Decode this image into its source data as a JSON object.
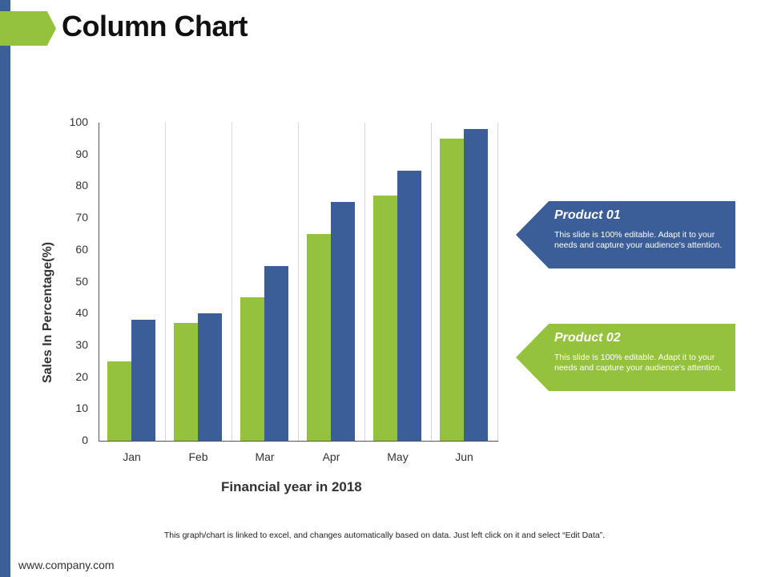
{
  "slide": {
    "title": "Column Chart",
    "footnote": "This graph/chart is linked to excel, and changes automatically based on data. Just left click on it and select “Edit Data”.",
    "url": "www.company.com",
    "colors": {
      "accent_green": "#95c23d",
      "accent_blue": "#3b5e99",
      "side_bar": "#3a5f99"
    }
  },
  "callouts": [
    {
      "title": "Product 01",
      "text": "This slide is 100% editable. Adapt it to your needs and capture your audience's attention.",
      "color": "#3b5e99"
    },
    {
      "title": "Product 02",
      "text": "This slide is 100% editable. Adapt it to your needs and capture your audience's attention.",
      "color": "#95c23d"
    }
  ],
  "chart_data": {
    "type": "bar",
    "title": "Column Chart",
    "xlabel": "Financial year in 2018",
    "ylabel": "Sales In Percentage(%)",
    "categories": [
      "Jan",
      "Feb",
      "Mar",
      "Apr",
      "May",
      "Jun"
    ],
    "series": [
      {
        "name": "Product 02",
        "color": "#95c23d",
        "values": [
          25,
          37,
          45,
          65,
          77,
          95
        ]
      },
      {
        "name": "Product 01",
        "color": "#3b5e99",
        "values": [
          38,
          40,
          55,
          75,
          85,
          98
        ]
      }
    ],
    "ylim": [
      0,
      100
    ],
    "yticks": [
      0,
      10,
      20,
      30,
      40,
      50,
      60,
      70,
      80,
      90,
      100
    ],
    "grid": "vertical category separators",
    "legend": "callouts on right"
  }
}
